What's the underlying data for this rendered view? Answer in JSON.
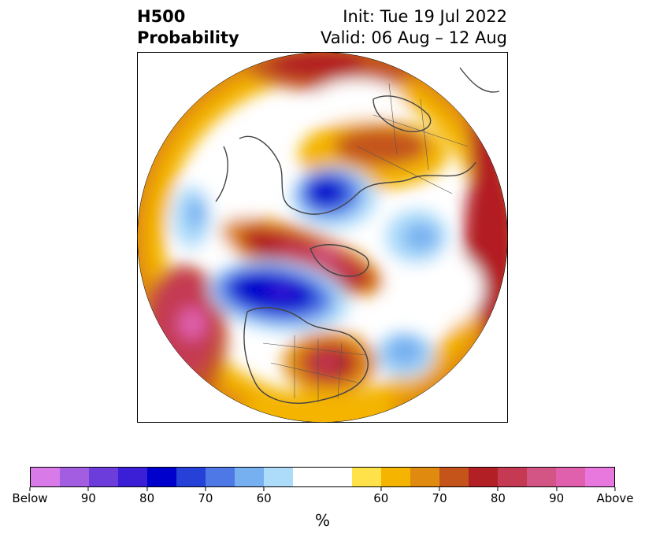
{
  "title": {
    "left_line1": "H500",
    "left_line2": "Probability",
    "right_line1": "Init: Tue 19 Jul 2022",
    "right_line2": "Valid: 06 Aug – 12 Aug"
  },
  "colorbar": {
    "colors": [
      "#d87ae8",
      "#a35de0",
      "#6c3ddb",
      "#3b1fd6",
      "#0000cc",
      "#2541d8",
      "#4d78e6",
      "#76b0f0",
      "#addcfa",
      "#ffffff",
      "#ffffff",
      "#ffe14a",
      "#f4b400",
      "#e08a0f",
      "#c4541a",
      "#b21f24",
      "#c53a52",
      "#d25585",
      "#e060ad",
      "#e878dd"
    ],
    "tick_labels": [
      "Below",
      "90",
      "80",
      "70",
      "60",
      "60",
      "70",
      "80",
      "90",
      "Above"
    ],
    "unit_label": "%"
  },
  "map": {
    "projection": "north polar stereographic",
    "field": "500 hPa height anomaly probability"
  }
}
